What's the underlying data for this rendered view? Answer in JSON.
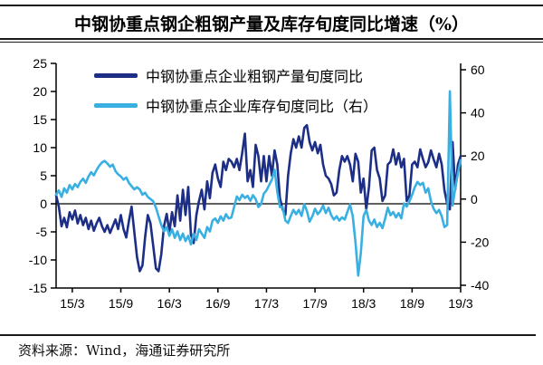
{
  "title": "中钢协重点钢企粗钢产量及库存旬度同比增速（%）",
  "source_note": "资料来源：Wind，海通证券研究所",
  "colors": {
    "production_line": "#1c2e86",
    "inventory_line": "#3ab0e2",
    "axis": "#000000",
    "rule": "#1a1a1a"
  },
  "legend": [
    {
      "label": "中钢协重点企业粗钢产量旬度同比",
      "color_key": "production_line"
    },
    {
      "label": "中钢协重点企业库存旬度同比（右）",
      "color_key": "inventory_line"
    }
  ],
  "chart_data": {
    "type": "line",
    "x_tick_labels": [
      "15/3",
      "15/9",
      "16/3",
      "16/9",
      "17/3",
      "17/9",
      "18/3",
      "18/9",
      "19/3"
    ],
    "x_first_tick_index": 6,
    "x_tick_index_spacing": 18,
    "points_total": 151,
    "x_frequency": "10-day (旬) periods, 2015/01 to 2019/03",
    "left_axis": {
      "ticks": [
        25,
        20,
        15,
        10,
        5,
        0,
        -5,
        -10,
        -15
      ],
      "range": [
        -15,
        25
      ]
    },
    "right_axis": {
      "ticks": [
        60,
        40,
        20,
        0,
        -20,
        -40
      ],
      "range": [
        -40,
        60
      ]
    },
    "grid": "zero-line only",
    "legend_position": "top-left inside plot",
    "series": [
      {
        "name": "中钢协重点企业粗钢产量旬度同比",
        "axis": "left",
        "color_key": "production_line",
        "values": [
          1.5,
          -0.5,
          -4.0,
          -2.5,
          -4.2,
          -1.5,
          -2.8,
          -1.2,
          -3.5,
          -2.0,
          -3.8,
          -2.5,
          -4.5,
          -3.0,
          -4.8,
          -3.5,
          -2.5,
          -4.0,
          -5.0,
          -3.8,
          -5.2,
          -4.0,
          -2.8,
          -4.5,
          -2.0,
          -4.5,
          -6.0,
          -3.0,
          -0.5,
          -5.0,
          -9.5,
          -12.0,
          -11.0,
          -6.0,
          -2.0,
          -3.5,
          -7.5,
          -11.5,
          -12.0,
          -9.0,
          -4.0,
          -1.8,
          -5.0,
          -1.5,
          -4.0,
          1.5,
          -3.0,
          2.5,
          -2.0,
          3.0,
          -5.5,
          -7.0,
          -2.0,
          0.5,
          2.5,
          -1.0,
          4.0,
          1.0,
          5.5,
          7.0,
          4.5,
          3.0,
          7.5,
          6.0,
          8.0,
          7.5,
          6.5,
          8.0,
          6.0,
          9.0,
          12.5,
          4.0,
          6.0,
          3.0,
          10.5,
          8.5,
          4.0,
          8.5,
          4.0,
          8.5,
          5.0,
          9.5,
          7.0,
          1.0,
          -1.0,
          -2.0,
          5.0,
          9.0,
          11.5,
          10.0,
          12.0,
          10.0,
          13.5,
          14.0,
          11.0,
          9.5,
          11.0,
          9.0,
          10.5,
          7.0,
          5.0,
          4.5,
          3.5,
          1.5,
          2.0,
          6.0,
          8.5,
          7.5,
          8.5,
          7.0,
          4.0,
          8.9,
          7.5,
          2.0,
          4.5,
          -1.0,
          3.0,
          9.5,
          10.0,
          6.0,
          4.5,
          0.5,
          1.5,
          7.0,
          7.5,
          9.7,
          7.0,
          9.0,
          6.5,
          8.0,
          0.5,
          1.5,
          7.0,
          7.5,
          6.5,
          9.7,
          8.0,
          6.5,
          7.4,
          9.5,
          7.9,
          6.5,
          8.9,
          7.0,
          2.4,
          0.0,
          -1.0,
          11.0,
          2.5,
          7.0,
          8.5
        ]
      },
      {
        "name": "中钢协重点企业库存旬度同比（右）",
        "axis": "right",
        "color_key": "inventory_line",
        "values": [
          2.0,
          4.0,
          1.0,
          5.0,
          3.0,
          6.5,
          4.5,
          7.0,
          5.5,
          8.0,
          9.5,
          7.5,
          10.5,
          12.5,
          11.0,
          13.5,
          15.5,
          17.0,
          17.7,
          16.5,
          15.0,
          16.0,
          13.0,
          11.5,
          10.5,
          9.0,
          10.0,
          7.5,
          6.0,
          4.5,
          5.5,
          4.5,
          2.0,
          3.0,
          1.0,
          0.0,
          -1.0,
          -4.0,
          -8.0,
          -12.0,
          -15.0,
          -13.0,
          -17.0,
          -14.0,
          -18.0,
          -15.0,
          -19.0,
          -16.0,
          -19.5,
          -17.0,
          -21.0,
          -16.0,
          -19.0,
          -14.0,
          -16.0,
          -18.0,
          -13.0,
          -15.0,
          -10.0,
          -9.0,
          -11.0,
          -8.0,
          -10.0,
          -7.0,
          -9.0,
          -8.5,
          -3.7,
          1.2,
          -0.5,
          2.0,
          0.5,
          1.5,
          -0.8,
          1.8,
          0.0,
          -3.7,
          -2.3,
          2.5,
          4.0,
          6.5,
          9.0,
          13.6,
          3.3,
          -3.7,
          -3.7,
          -9.9,
          -11.1,
          -7.8,
          -5.0,
          -7.0,
          -5.0,
          -7.8,
          -2.3,
          -5.5,
          -10.5,
          -8.0,
          -4.5,
          -7.0,
          -5.5,
          -3.0,
          -6.5,
          -4.0,
          -7.5,
          -9.5,
          -8.0,
          -10.0,
          -8.5,
          -9.5,
          -6.0,
          -2.5,
          -8.0,
          -20.0,
          -35.5,
          -25.0,
          -8.0,
          -5.0,
          -10.0,
          -12.0,
          -9.5,
          -13.0,
          -11.0,
          -13.5,
          -9.0,
          -4.0,
          -7.5,
          -6.0,
          -8.5,
          -6.5,
          -9.0,
          -2.0,
          -3.5,
          -1.0,
          2.0,
          5.5,
          8.0,
          6.5,
          7.5,
          3.0,
          5.0,
          -1.0,
          -4.5,
          -6.5,
          -5.0,
          -8.0,
          -13.0,
          -12.0,
          50.0,
          -3.0,
          5.0,
          12.0,
          18.0
        ]
      }
    ]
  }
}
